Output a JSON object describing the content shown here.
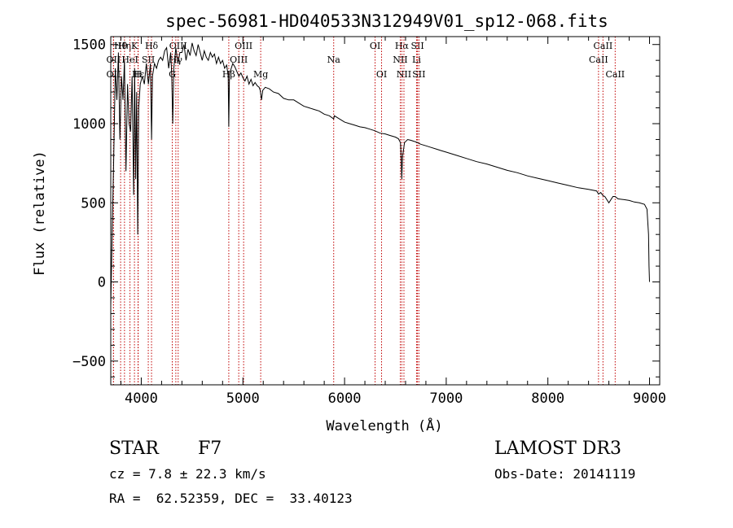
{
  "chart_data": {
    "type": "line",
    "title": "spec-56981-HD040533N312949V01_sp12-068.fits",
    "xlabel": "Wavelength (Å)",
    "ylabel": "Flux (relative)",
    "xlim": [
      3700,
      9100
    ],
    "ylim": [
      -650,
      1550
    ],
    "x_ticks": [
      4000,
      5000,
      6000,
      7000,
      8000,
      9000
    ],
    "x_tick_labels": [
      "4000",
      "5000",
      "6000",
      "7000",
      "8000",
      "9000"
    ],
    "y_ticks": [
      -500,
      0,
      500,
      1000,
      1500
    ],
    "y_tick_labels": [
      "−500",
      "0",
      "500",
      "1000",
      "1500"
    ],
    "grid": false,
    "series": [
      {
        "name": "spectrum",
        "x": [
          3700,
          3715,
          3730,
          3745,
          3760,
          3775,
          3790,
          3805,
          3820,
          3835,
          3850,
          3865,
          3880,
          3895,
          3910,
          3925,
          3935,
          3945,
          3955,
          3965,
          3975,
          3990,
          4010,
          4030,
          4050,
          4070,
          4090,
          4101,
          4110,
          4130,
          4150,
          4170,
          4190,
          4210,
          4230,
          4250,
          4270,
          4290,
          4300,
          4310,
          4320,
          4340,
          4360,
          4380,
          4400,
          4420,
          4440,
          4460,
          4480,
          4500,
          4520,
          4540,
          4560,
          4580,
          4600,
          4620,
          4640,
          4660,
          4680,
          4700,
          4720,
          4740,
          4760,
          4780,
          4800,
          4820,
          4840,
          4855,
          4861,
          4868,
          4880,
          4900,
          4920,
          4940,
          4960,
          4980,
          5000,
          5020,
          5040,
          5060,
          5080,
          5100,
          5120,
          5140,
          5160,
          5170,
          5183,
          5195,
          5220,
          5260,
          5300,
          5350,
          5400,
          5450,
          5500,
          5550,
          5600,
          5650,
          5700,
          5750,
          5800,
          5850,
          5893,
          5900,
          5950,
          6000,
          6050,
          6100,
          6150,
          6200,
          6250,
          6300,
          6350,
          6400,
          6450,
          6500,
          6530,
          6550,
          6557,
          6563,
          6570,
          6590,
          6620,
          6650,
          6700,
          6750,
          6800,
          6850,
          6900,
          6950,
          7000,
          7100,
          7200,
          7300,
          7400,
          7500,
          7600,
          7700,
          7800,
          7900,
          8000,
          8100,
          8200,
          8300,
          8400,
          8480,
          8498,
          8520,
          8542,
          8560,
          8600,
          8640,
          8662,
          8690,
          8750,
          8800,
          8850,
          8900,
          8950,
          8975,
          8990,
          8995,
          9000
        ],
        "y": [
          -150,
          350,
          800,
          1350,
          1150,
          1450,
          900,
          1300,
          1150,
          1400,
          700,
          1250,
          1000,
          950,
          1300,
          550,
          1350,
          650,
          1200,
          300,
          1100,
          1250,
          1300,
          1250,
          1380,
          1250,
          1380,
          900,
          1300,
          1380,
          1350,
          1400,
          1420,
          1400,
          1460,
          1480,
          1350,
          1450,
          1300,
          1000,
          1350,
          1480,
          1380,
          1450,
          1450,
          1500,
          1400,
          1470,
          1430,
          1510,
          1460,
          1430,
          1500,
          1450,
          1400,
          1460,
          1420,
          1400,
          1450,
          1420,
          1440,
          1380,
          1420,
          1380,
          1400,
          1350,
          1370,
          1300,
          980,
          1320,
          1340,
          1380,
          1360,
          1330,
          1300,
          1320,
          1290,
          1270,
          1300,
          1250,
          1280,
          1240,
          1260,
          1240,
          1230,
          1210,
          1150,
          1210,
          1230,
          1220,
          1200,
          1190,
          1160,
          1150,
          1150,
          1130,
          1110,
          1100,
          1090,
          1080,
          1060,
          1050,
          1030,
          1050,
          1030,
          1010,
          1000,
          990,
          980,
          975,
          965,
          955,
          940,
          935,
          925,
          915,
          905,
          880,
          780,
          650,
          790,
          880,
          900,
          895,
          885,
          870,
          860,
          850,
          840,
          830,
          820,
          800,
          780,
          760,
          745,
          725,
          705,
          690,
          670,
          655,
          640,
          625,
          610,
          595,
          585,
          575,
          555,
          565,
          545,
          540,
          500,
          540,
          540,
          525,
          520,
          515,
          505,
          500,
          490,
          460,
          300,
          100,
          0
        ]
      }
    ],
    "lines": [
      {
        "label": "Hθ",
        "x": 3797,
        "row": 0
      },
      {
        "label": "OII",
        "x": 3727,
        "row": 1
      },
      {
        "label": "OII",
        "x": 3727,
        "row": 2
      },
      {
        "label": "Hη",
        "x": 3835,
        "row": 0
      },
      {
        "label": "K",
        "x": 3933,
        "row": 0
      },
      {
        "label": "HeI",
        "x": 3889,
        "row": 1
      },
      {
        "label": "SII",
        "x": 4069,
        "row": 1
      },
      {
        "label": "H",
        "x": 3968,
        "row": 2
      },
      {
        "label": "Hε",
        "x": 3970,
        "row": 2
      },
      {
        "label": "Hδ",
        "x": 4101,
        "row": 0
      },
      {
        "label": "OIII",
        "x": 4363,
        "row": 0
      },
      {
        "label": "Hγ",
        "x": 4340,
        "row": 1
      },
      {
        "label": "G",
        "x": 4305,
        "row": 2
      },
      {
        "label": "OIII",
        "x": 5007,
        "row": 0
      },
      {
        "label": "OIII",
        "x": 4959,
        "row": 1
      },
      {
        "label": "Hβ",
        "x": 4861,
        "row": 2
      },
      {
        "label": "Mg",
        "x": 5175,
        "row": 2
      },
      {
        "label": "Na",
        "x": 5893,
        "row": 1
      },
      {
        "label": "OI",
        "x": 6300,
        "row": 0
      },
      {
        "label": "OI",
        "x": 6364,
        "row": 2
      },
      {
        "label": "Hα",
        "x": 6563,
        "row": 0
      },
      {
        "label": "NII",
        "x": 6548,
        "row": 1
      },
      {
        "label": "NII",
        "x": 6584,
        "row": 2
      },
      {
        "label": "SII",
        "x": 6717,
        "row": 0
      },
      {
        "label": "Li",
        "x": 6708,
        "row": 1
      },
      {
        "label": "SII",
        "x": 6731,
        "row": 2
      },
      {
        "label": "CaII",
        "x": 8542,
        "row": 0
      },
      {
        "label": "CaII",
        "x": 8498,
        "row": 1
      },
      {
        "label": "CaII",
        "x": 8662,
        "row": 2
      }
    ]
  },
  "footer": {
    "object_type": "STAR",
    "subclass": "F7",
    "survey": "LAMOST DR3",
    "cz": "cz = 7.8 ± 22.3 km/s",
    "obs_date": "Obs-Date: 20141119",
    "coords": "RA =  62.52359, DEC =  33.40123"
  },
  "colors": {
    "line": "#000000",
    "marker_line": "#c00000",
    "text": "#000000"
  }
}
